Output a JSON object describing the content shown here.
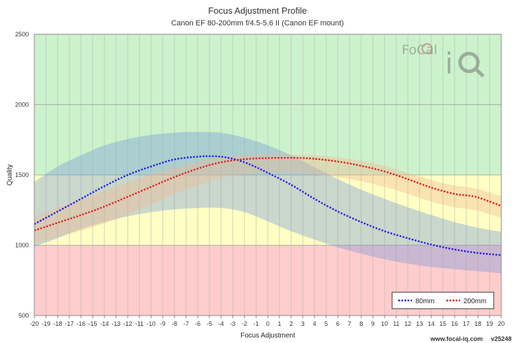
{
  "chart_data": {
    "type": "line",
    "title": "Focus Adjustment Profile",
    "subtitle": "Canon EF 80-200mm f/4.5-5.6 II (Canon EF mount)",
    "xlabel": "Focus Adjustment",
    "ylabel": "Quality",
    "xlim": [
      -20,
      20
    ],
    "ylim": [
      500,
      2500
    ],
    "x_ticks": [
      -20,
      -19,
      -18,
      -17,
      -16,
      -15,
      -14,
      -13,
      -12,
      -11,
      -10,
      -9,
      -8,
      -7,
      -6,
      -5,
      -4,
      -3,
      -2,
      -1,
      0,
      1,
      2,
      3,
      4,
      5,
      6,
      7,
      8,
      9,
      10,
      11,
      12,
      13,
      14,
      15,
      16,
      17,
      18,
      19,
      20
    ],
    "y_ticks": [
      500,
      1000,
      1500,
      2000,
      2500
    ],
    "bands": [
      {
        "from": 1500,
        "to": 2500,
        "color": "#ccf2cc"
      },
      {
        "from": 1000,
        "to": 1500,
        "color": "#ffffc4"
      },
      {
        "from": 500,
        "to": 1000,
        "color": "#ffcccc"
      }
    ],
    "series": [
      {
        "name": "80mm",
        "color": "#1a1ae0",
        "band_color": "#7a9cd8",
        "x": [
          -20,
          -18,
          -16,
          -14,
          -12,
          -10,
          -8,
          -6,
          -5,
          -4,
          -3,
          -2,
          -1,
          0,
          2,
          4,
          6,
          8,
          10,
          12,
          14,
          16,
          18,
          20
        ],
        "values": [
          1150,
          1240,
          1330,
          1420,
          1500,
          1560,
          1610,
          1630,
          1633,
          1630,
          1615,
          1590,
          1555,
          1515,
          1430,
          1330,
          1240,
          1165,
          1100,
          1050,
          1005,
          970,
          945,
          930
        ],
        "upper": [
          1450,
          1560,
          1640,
          1710,
          1755,
          1785,
          1800,
          1806,
          1805,
          1800,
          1785,
          1765,
          1740,
          1710,
          1640,
          1555,
          1470,
          1395,
          1330,
          1270,
          1215,
          1165,
          1125,
          1095
        ],
        "lower": [
          990,
          1050,
          1115,
          1165,
          1205,
          1235,
          1255,
          1265,
          1268,
          1265,
          1255,
          1235,
          1205,
          1170,
          1100,
          1040,
          985,
          940,
          900,
          870,
          845,
          830,
          815,
          800
        ]
      },
      {
        "name": "200mm",
        "color": "#e01a1a",
        "band_color": "#f0b890",
        "x": [
          -20,
          -18,
          -16,
          -14,
          -12,
          -10,
          -8,
          -6,
          -4,
          -2,
          0,
          2,
          3,
          4,
          6,
          8,
          10,
          12,
          14,
          16,
          17,
          18,
          20
        ],
        "values": [
          1105,
          1160,
          1215,
          1275,
          1345,
          1415,
          1485,
          1545,
          1590,
          1612,
          1620,
          1622,
          1620,
          1615,
          1595,
          1565,
          1525,
          1470,
          1410,
          1365,
          1355,
          1340,
          1280
        ],
        "upper": [
          1205,
          1265,
          1325,
          1385,
          1445,
          1505,
          1555,
          1595,
          1625,
          1640,
          1645,
          1645,
          1643,
          1640,
          1625,
          1600,
          1565,
          1515,
          1465,
          1425,
          1415,
          1400,
          1350
        ],
        "lower": [
          1015,
          1060,
          1105,
          1155,
          1220,
          1290,
          1365,
          1425,
          1480,
          1505,
          1515,
          1515,
          1512,
          1505,
          1485,
          1455,
          1415,
          1365,
          1310,
          1270,
          1260,
          1245,
          1195
        ]
      }
    ],
    "legend_position": "bottom-right",
    "grid": true
  },
  "footer": {
    "url": "www.focal-iq.com",
    "version": "v25248"
  },
  "logo": {
    "line1": "FoCal",
    "line2": "iQ"
  }
}
